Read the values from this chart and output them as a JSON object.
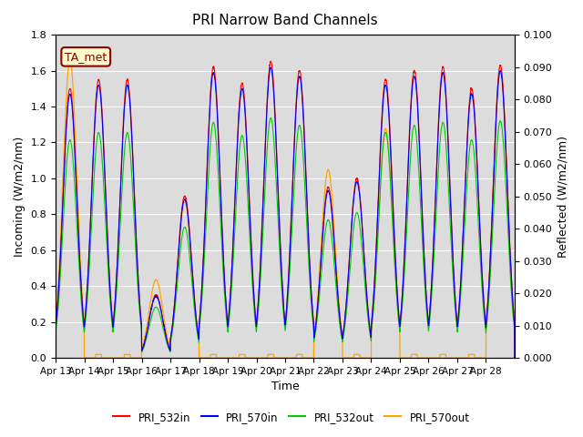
{
  "title": "PRI Narrow Band Channels",
  "xlabel": "Time",
  "ylabel_left": "Incoming (W/m2/nm)",
  "ylabel_right": "Reflected (W/m2/nm)",
  "ylim_left": [
    0,
    1.8
  ],
  "ylim_right": [
    0,
    0.1
  ],
  "x_tick_labels": [
    "Apr 13",
    "Apr 14",
    "Apr 15",
    "Apr 16",
    "Apr 17",
    "Apr 18",
    "Apr 19",
    "Apr 20",
    "Apr 21",
    "Apr 22",
    "Apr 23",
    "Apr 24",
    "Apr 25",
    "Apr 26",
    "Apr 27",
    "Apr 28"
  ],
  "annotation_text": "TA_met",
  "annotation_color": "#8B0000",
  "annotation_bg": "#FFFFCC",
  "legend_colors": [
    "#FF0000",
    "#0000FF",
    "#00CC00",
    "#FFA500"
  ],
  "legend_labels": [
    "PRI_532in",
    "PRI_570in",
    "PRI_532out",
    "PRI_570out"
  ],
  "day_peaks": [
    1.5,
    1.55,
    1.55,
    0.35,
    0.9,
    1.62,
    1.53,
    1.65,
    1.6,
    0.95,
    1.0,
    1.55,
    1.6,
    1.62,
    1.5,
    1.63
  ],
  "day_peaks_570out": [
    1.68,
    0.02,
    0.02,
    0.44,
    0.88,
    0.02,
    0.02,
    0.02,
    0.02,
    1.06,
    0.02,
    1.29,
    0.02,
    0.02,
    0.02,
    1.63
  ],
  "num_days": 16,
  "pts_per_day": 200,
  "left_yticks": [
    0.0,
    0.2,
    0.4,
    0.6,
    0.8,
    1.0,
    1.2,
    1.4,
    1.6,
    1.8
  ],
  "right_yticks": [
    0.0,
    0.01,
    0.02,
    0.03,
    0.04,
    0.05,
    0.06,
    0.07,
    0.08,
    0.09,
    0.1
  ]
}
